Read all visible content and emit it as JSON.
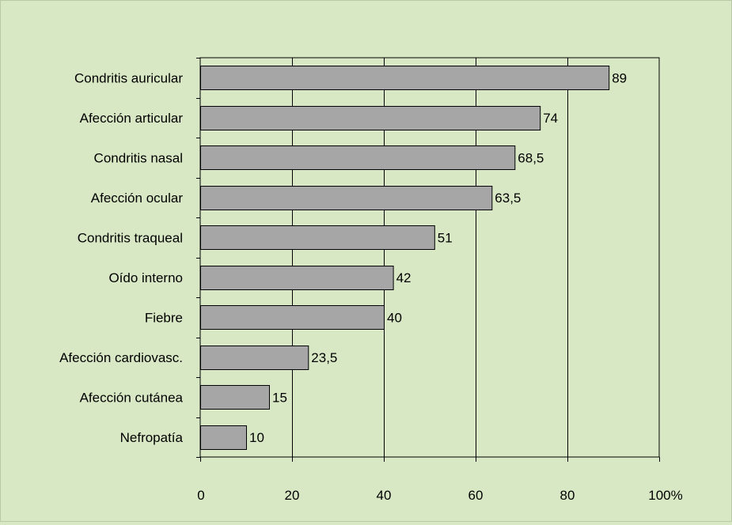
{
  "colors": {
    "background": "#d9e8c4",
    "bar_fill": "#a6a6a6",
    "bar_stroke": "#000000",
    "gridline": "#000000"
  },
  "chart_data": {
    "type": "bar",
    "orientation": "horizontal",
    "categories": [
      "Condritis auricular",
      "Afección articular",
      "Condritis nasal",
      "Afección ocular",
      "Condritis traqueal",
      "Oído interno",
      "Fiebre",
      "Afección cardiovasc.",
      "Afección cutánea",
      "Nefropatía"
    ],
    "values": [
      89,
      74,
      68.5,
      63.5,
      51,
      42,
      40,
      23.5,
      15,
      10
    ],
    "value_labels": [
      "89",
      "74",
      "68,5",
      "63,5",
      "51",
      "42",
      "40",
      "23,5",
      "15",
      "10"
    ],
    "x_ticks": [
      0,
      20,
      40,
      60,
      80,
      100
    ],
    "x_tick_labels": [
      "0",
      "20",
      "40",
      "60",
      "80",
      "100%"
    ],
    "xlim": [
      0,
      100
    ],
    "grid": "vertical",
    "legend": "none"
  }
}
